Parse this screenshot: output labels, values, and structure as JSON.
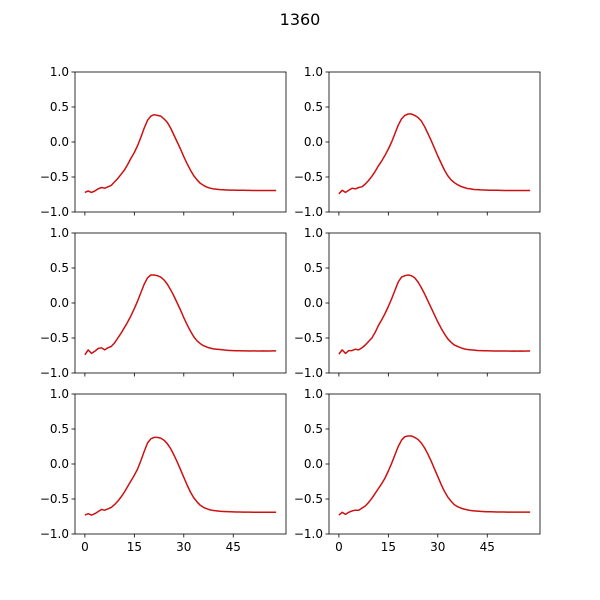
{
  "figure": {
    "title": "1360"
  },
  "style": {
    "line_color": "#cc1111",
    "axes_color": "#000000",
    "background": "#ffffff"
  },
  "chart_data": [
    {
      "type": "line",
      "x": [
        0,
        1,
        2,
        3,
        4,
        5,
        6,
        7,
        8,
        9,
        10,
        11,
        12,
        13,
        14,
        15,
        16,
        17,
        18,
        19,
        20,
        21,
        22,
        23,
        24,
        25,
        26,
        27,
        28,
        29,
        30,
        31,
        32,
        33,
        34,
        35,
        36,
        37,
        38,
        39,
        40,
        41,
        42,
        43,
        44,
        45,
        46,
        47,
        48,
        49,
        50,
        51,
        52,
        53,
        54,
        55,
        56,
        57,
        58
      ],
      "series": [
        {
          "values": [
            -0.72,
            -0.7,
            -0.72,
            -0.7,
            -0.67,
            -0.65,
            -0.66,
            -0.64,
            -0.62,
            -0.57,
            -0.52,
            -0.46,
            -0.4,
            -0.32,
            -0.23,
            -0.15,
            -0.05,
            0.07,
            0.2,
            0.31,
            0.37,
            0.39,
            0.38,
            0.37,
            0.33,
            0.28,
            0.2,
            0.1,
            0.0,
            -0.1,
            -0.21,
            -0.31,
            -0.4,
            -0.48,
            -0.54,
            -0.59,
            -0.62,
            -0.645,
            -0.66,
            -0.67,
            -0.675,
            -0.68,
            -0.683,
            -0.685,
            -0.687,
            -0.688,
            -0.689,
            -0.69,
            -0.69,
            -0.691,
            -0.691,
            -0.692,
            -0.692,
            -0.692,
            -0.692,
            -0.693,
            -0.692,
            -0.693,
            -0.693
          ]
        }
      ],
      "xlim": [
        -3,
        61
      ],
      "ylim": [
        -1.0,
        1.0
      ],
      "yticks": [
        "1.0",
        "0.5",
        "0.0",
        "−0.5",
        "−1.0"
      ],
      "yticks_values": [
        1.0,
        0.5,
        0.0,
        -0.5,
        -1.0
      ],
      "xticks_values": [
        0,
        15,
        30,
        45
      ],
      "xticks": []
    },
    {
      "type": "line",
      "x": [
        0,
        1,
        2,
        3,
        4,
        5,
        6,
        7,
        8,
        9,
        10,
        11,
        12,
        13,
        14,
        15,
        16,
        17,
        18,
        19,
        20,
        21,
        22,
        23,
        24,
        25,
        26,
        27,
        28,
        29,
        30,
        31,
        32,
        33,
        34,
        35,
        36,
        37,
        38,
        39,
        40,
        41,
        42,
        43,
        44,
        45,
        46,
        47,
        48,
        49,
        50,
        51,
        52,
        53,
        54,
        55,
        56,
        57,
        58
      ],
      "series": [
        {
          "values": [
            -0.74,
            -0.69,
            -0.72,
            -0.69,
            -0.66,
            -0.67,
            -0.65,
            -0.64,
            -0.6,
            -0.55,
            -0.49,
            -0.42,
            -0.34,
            -0.27,
            -0.19,
            -0.1,
            0.0,
            0.12,
            0.24,
            0.33,
            0.38,
            0.4,
            0.4,
            0.38,
            0.35,
            0.3,
            0.22,
            0.12,
            0.02,
            -0.09,
            -0.2,
            -0.3,
            -0.4,
            -0.48,
            -0.54,
            -0.58,
            -0.61,
            -0.635,
            -0.65,
            -0.665,
            -0.67,
            -0.678,
            -0.68,
            -0.684,
            -0.686,
            -0.688,
            -0.689,
            -0.69,
            -0.69,
            -0.691,
            -0.692,
            -0.692,
            -0.692,
            -0.693,
            -0.692,
            -0.692,
            -0.693,
            -0.692,
            -0.692
          ]
        }
      ],
      "xlim": [
        -3,
        61
      ],
      "ylim": [
        -1.0,
        1.0
      ],
      "yticks": [
        "1.0",
        "0.5",
        "0.0",
        "−0.5",
        "−1.0"
      ],
      "yticks_values": [
        1.0,
        0.5,
        0.0,
        -0.5,
        -1.0
      ],
      "xticks_values": [
        0,
        15,
        30,
        45
      ],
      "xticks": []
    },
    {
      "type": "line",
      "x": [
        0,
        1,
        2,
        3,
        4,
        5,
        6,
        7,
        8,
        9,
        10,
        11,
        12,
        13,
        14,
        15,
        16,
        17,
        18,
        19,
        20,
        21,
        22,
        23,
        24,
        25,
        26,
        27,
        28,
        29,
        30,
        31,
        32,
        33,
        34,
        35,
        36,
        37,
        38,
        39,
        40,
        41,
        42,
        43,
        44,
        45,
        46,
        47,
        48,
        49,
        50,
        51,
        52,
        53,
        54,
        55,
        56,
        57,
        58
      ],
      "series": [
        {
          "values": [
            -0.74,
            -0.67,
            -0.72,
            -0.69,
            -0.65,
            -0.64,
            -0.67,
            -0.64,
            -0.62,
            -0.57,
            -0.5,
            -0.43,
            -0.35,
            -0.27,
            -0.18,
            -0.08,
            0.03,
            0.15,
            0.27,
            0.36,
            0.4,
            0.4,
            0.39,
            0.37,
            0.33,
            0.27,
            0.19,
            0.1,
            0.0,
            -0.1,
            -0.21,
            -0.31,
            -0.4,
            -0.48,
            -0.54,
            -0.58,
            -0.61,
            -0.63,
            -0.645,
            -0.655,
            -0.66,
            -0.665,
            -0.67,
            -0.675,
            -0.678,
            -0.68,
            -0.682,
            -0.683,
            -0.684,
            -0.684,
            -0.685,
            -0.684,
            -0.685,
            -0.685,
            -0.684,
            -0.685,
            -0.685,
            -0.684,
            -0.684
          ]
        }
      ],
      "xlim": [
        -3,
        61
      ],
      "ylim": [
        -1.0,
        1.0
      ],
      "yticks": [
        "1.0",
        "0.5",
        "0.0",
        "−0.5",
        "−1.0"
      ],
      "yticks_values": [
        1.0,
        0.5,
        0.0,
        -0.5,
        -1.0
      ],
      "xticks_values": [
        0,
        15,
        30,
        45
      ],
      "xticks": []
    },
    {
      "type": "line",
      "x": [
        0,
        1,
        2,
        3,
        4,
        5,
        6,
        7,
        8,
        9,
        10,
        11,
        12,
        13,
        14,
        15,
        16,
        17,
        18,
        19,
        20,
        21,
        22,
        23,
        24,
        25,
        26,
        27,
        28,
        29,
        30,
        31,
        32,
        33,
        34,
        35,
        36,
        37,
        38,
        39,
        40,
        41,
        42,
        43,
        44,
        45,
        46,
        47,
        48,
        49,
        50,
        51,
        52,
        53,
        54,
        55,
        56,
        57,
        58
      ],
      "series": [
        {
          "values": [
            -0.73,
            -0.67,
            -0.72,
            -0.68,
            -0.68,
            -0.66,
            -0.67,
            -0.64,
            -0.6,
            -0.55,
            -0.5,
            -0.42,
            -0.32,
            -0.24,
            -0.15,
            -0.05,
            0.06,
            0.18,
            0.3,
            0.37,
            0.39,
            0.4,
            0.39,
            0.36,
            0.3,
            0.22,
            0.13,
            0.03,
            -0.07,
            -0.17,
            -0.27,
            -0.36,
            -0.44,
            -0.51,
            -0.56,
            -0.6,
            -0.62,
            -0.64,
            -0.655,
            -0.665,
            -0.67,
            -0.674,
            -0.678,
            -0.68,
            -0.682,
            -0.683,
            -0.684,
            -0.685,
            -0.685,
            -0.686,
            -0.686,
            -0.686,
            -0.687,
            -0.686,
            -0.687,
            -0.686,
            -0.687,
            -0.686,
            -0.686
          ]
        }
      ],
      "xlim": [
        -3,
        61
      ],
      "ylim": [
        -1.0,
        1.0
      ],
      "yticks": [
        "1.0",
        "0.5",
        "0.0",
        "−0.5",
        "−1.0"
      ],
      "yticks_values": [
        1.0,
        0.5,
        0.0,
        -0.5,
        -1.0
      ],
      "xticks_values": [
        0,
        15,
        30,
        45
      ],
      "xticks": []
    },
    {
      "type": "line",
      "x": [
        0,
        1,
        2,
        3,
        4,
        5,
        6,
        7,
        8,
        9,
        10,
        11,
        12,
        13,
        14,
        15,
        16,
        17,
        18,
        19,
        20,
        21,
        22,
        23,
        24,
        25,
        26,
        27,
        28,
        29,
        30,
        31,
        32,
        33,
        34,
        35,
        36,
        37,
        38,
        39,
        40,
        41,
        42,
        43,
        44,
        45,
        46,
        47,
        48,
        49,
        50,
        51,
        52,
        53,
        54,
        55,
        56,
        57,
        58
      ],
      "series": [
        {
          "values": [
            -0.73,
            -0.71,
            -0.73,
            -0.71,
            -0.68,
            -0.65,
            -0.66,
            -0.64,
            -0.62,
            -0.58,
            -0.53,
            -0.47,
            -0.4,
            -0.32,
            -0.24,
            -0.16,
            -0.07,
            0.05,
            0.18,
            0.3,
            0.36,
            0.38,
            0.38,
            0.37,
            0.34,
            0.29,
            0.22,
            0.13,
            0.03,
            -0.08,
            -0.19,
            -0.3,
            -0.4,
            -0.48,
            -0.54,
            -0.59,
            -0.62,
            -0.64,
            -0.655,
            -0.665,
            -0.67,
            -0.675,
            -0.678,
            -0.68,
            -0.682,
            -0.684,
            -0.685,
            -0.686,
            -0.687,
            -0.688,
            -0.688,
            -0.689,
            -0.689,
            -0.69,
            -0.69,
            -0.689,
            -0.69,
            -0.69,
            -0.69
          ]
        }
      ],
      "xlim": [
        -3,
        61
      ],
      "ylim": [
        -1.0,
        1.0
      ],
      "yticks": [
        "1.0",
        "0.5",
        "0.0",
        "−0.5",
        "−1.0"
      ],
      "yticks_values": [
        1.0,
        0.5,
        0.0,
        -0.5,
        -1.0
      ],
      "xticks_values": [
        0,
        15,
        30,
        45
      ],
      "xticks": [
        "0",
        "15",
        "30",
        "45"
      ]
    },
    {
      "type": "line",
      "x": [
        0,
        1,
        2,
        3,
        4,
        5,
        6,
        7,
        8,
        9,
        10,
        11,
        12,
        13,
        14,
        15,
        16,
        17,
        18,
        19,
        20,
        21,
        22,
        23,
        24,
        25,
        26,
        27,
        28,
        29,
        30,
        31,
        32,
        33,
        34,
        35,
        36,
        37,
        38,
        39,
        40,
        41,
        42,
        43,
        44,
        45,
        46,
        47,
        48,
        49,
        50,
        51,
        52,
        53,
        54,
        55,
        56,
        57,
        58
      ],
      "series": [
        {
          "values": [
            -0.73,
            -0.69,
            -0.72,
            -0.69,
            -0.67,
            -0.66,
            -0.66,
            -0.63,
            -0.6,
            -0.55,
            -0.49,
            -0.42,
            -0.35,
            -0.28,
            -0.2,
            -0.1,
            0.01,
            0.13,
            0.25,
            0.34,
            0.39,
            0.4,
            0.4,
            0.38,
            0.35,
            0.3,
            0.23,
            0.14,
            0.04,
            -0.07,
            -0.18,
            -0.29,
            -0.39,
            -0.47,
            -0.53,
            -0.58,
            -0.61,
            -0.63,
            -0.645,
            -0.655,
            -0.665,
            -0.67,
            -0.674,
            -0.677,
            -0.68,
            -0.682,
            -0.683,
            -0.684,
            -0.685,
            -0.686,
            -0.686,
            -0.687,
            -0.687,
            -0.687,
            -0.688,
            -0.687,
            -0.688,
            -0.688,
            -0.687
          ]
        }
      ],
      "xlim": [
        -3,
        61
      ],
      "ylim": [
        -1.0,
        1.0
      ],
      "yticks": [
        "1.0",
        "0.5",
        "0.0",
        "−0.5",
        "−1.0"
      ],
      "yticks_values": [
        1.0,
        0.5,
        0.0,
        -0.5,
        -1.0
      ],
      "xticks_values": [
        0,
        15,
        30,
        45
      ],
      "xticks": [
        "0",
        "15",
        "30",
        "45"
      ]
    }
  ]
}
